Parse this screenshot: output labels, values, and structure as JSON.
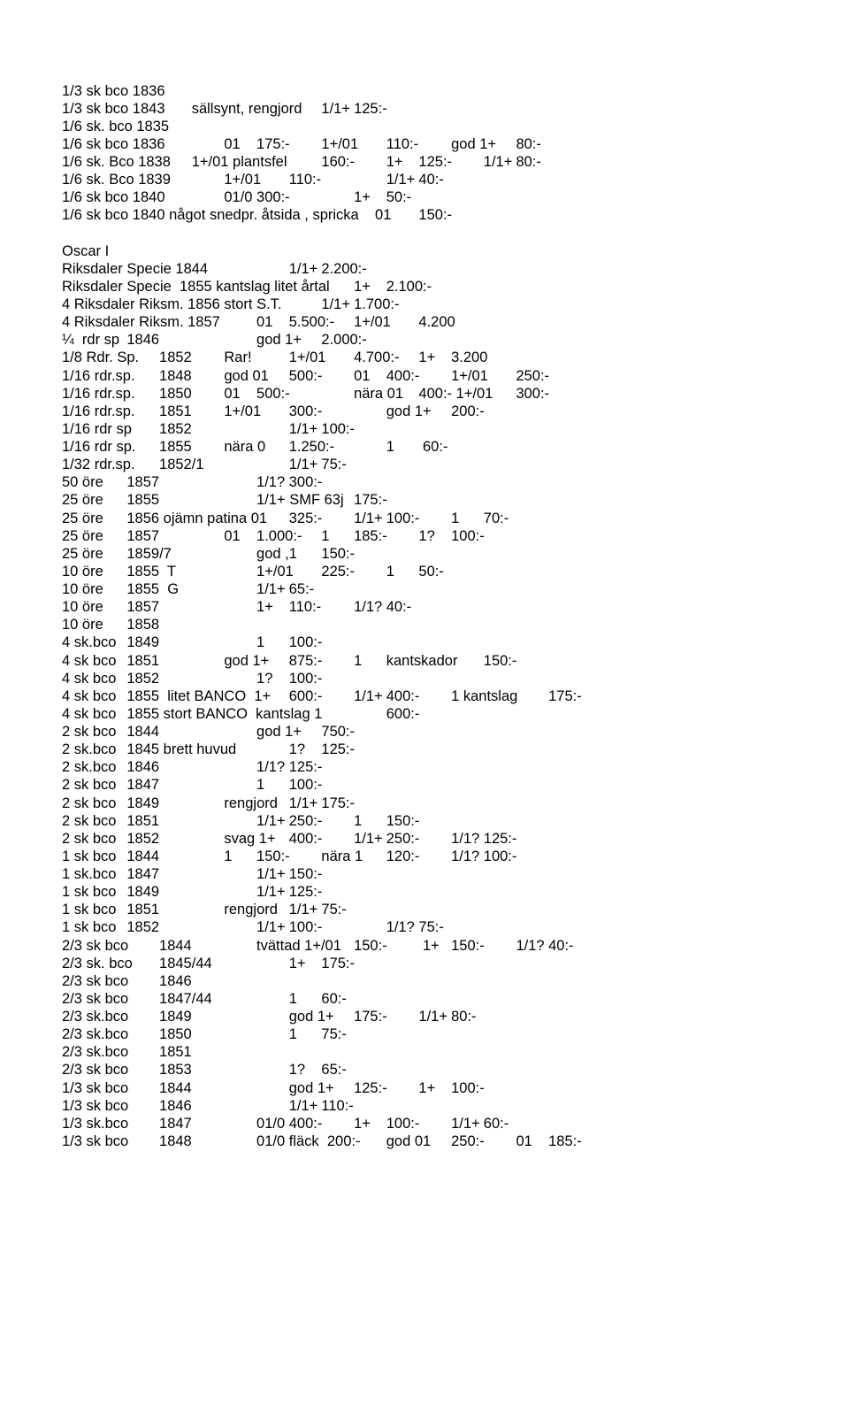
{
  "lines": [
    "1/3 sk bco 1836",
    "1/3 sk bco 1843\tsällsynt, rengjord\t1/1+\t125:-",
    "1/6 sk. bco 1835",
    "1/6 sk bco 1836\t\t01\t175:-\t1+/01\t110:-\tgod 1+\t80:-",
    "1/6 sk. Bco 1838\t1+/01 plantsfel\t160:-\t1+\t125:-\t1/1+\t80:-",
    "1/6 sk. Bco 1839\t\t1+/01\t110:-\t\t1/1+\t40:-",
    "1/6 sk bco 1840\t\t01/0\t300:-\t\t1+\t50:-",
    "1/6 sk bco 1840 något snedpr. åtsida , spricka    01\t150:-",
    "",
    "Oscar I",
    "Riksdaler Specie 1844\t\t\t1/1+\t2.200:-",
    "Riksdaler Specie  1855 kantslag litet årtal\t1+\t2.100:-",
    "4 Riksdaler Riksm. 1856 stort S.T.\t\t1/1+\t1.700:-",
    "4 Riksdaler Riksm. 1857\t\t01\t5.500:-\t1+/01\t4.200",
    "¼  rdr sp\t1846\t\t\tgod 1+\t2.000:-",
    "1/8 Rdr. Sp.\t1852\tRar!\t\t1+/01\t4.700:-\t1+\t3.200",
    "1/16 rdr.sp.\t1848\tgod 01\t500:-\t01\t400:-\t1+/01\t250:-",
    "1/16 rdr.sp.\t1850\t01\t500:-\t\tnära 01\t400:- 1+/01\t300:-",
    "1/16 rdr.sp.\t1851\t1+/01\t300:-\t\tgod 1+\t200:-",
    "1/16 rdr sp\t1852\t\t\t1/1+\t100:-",
    "1/16 rdr sp.\t1855\tnära 0\t1.250:-\t\t1\t 60:-",
    "1/32 rdr.sp.\t1852/1\t\t\t1/1+\t75:-",
    "50 öre\t1857\t\t\t1/1?\t300:-",
    "25 öre\t1855\t\t\t1/1+ SMF 63j\t175:-",
    "25 öre\t1856 ojämn patina 01\t325:-\t1/1+\t100:-\t1\t70:-",
    "25 öre\t1857\t\t01\t1.000:-\t1\t185:-\t1?\t100:-",
    "25 öre\t1859/7\t\t\tgod ,1\t150:-",
    "10 öre\t1855  T\t\t\t1+/01\t225:-\t1\t50:-",
    "10 öre\t1855  G\t\t\t1/1+\t65:-",
    "10 öre\t1857\t\t\t1+\t110:-\t1/1?\t40:-",
    "10 öre\t1858",
    "4 sk.bco\t1849\t\t\t1\t100:-",
    "4 sk bco\t1851\t\tgod 1+\t875:-\t1\tkantskador\t150:-",
    "4 sk bco\t1852\t\t\t1?\t100:-",
    "4 sk bco\t1855  litet BANCO  1+\t600:-\t1/1+\t400:-\t1 kantslag\t175:-",
    "4 sk bco\t1855 stort BANCO  kantslag 1\t\t600:-",
    "2 sk bco\t1844\t\t\tgod 1+\t750:-",
    "2 sk.bco\t1845 brett huvud\t\t1?\t125:-",
    "2 sk.bco\t1846\t\t\t1/1?\t125:-",
    "2 sk bco\t1847\t\t\t1\t100:-",
    "2 sk bco\t1849\t\trengjord\t1/1+\t175:-",
    "2 sk bco\t1851\t\t\t1/1+\t250:-\t1\t150:-",
    "2 sk bco\t1852\t\tsvag 1+\t400:-\t1/1+\t250:-\t1/1?\t125:-",
    "1 sk bco\t1844\t\t1\t150:-\tnära 1\t120:-\t1/1?\t100:-",
    "1 sk.bco\t1847\t\t\t1/1+\t150:-",
    "1 sk bco\t1849\t\t\t1/1+\t125:-",
    "1 sk bco\t1851\t\trengjord\t1/1+\t75:-",
    "1 sk bco\t1852\t\t\t1/1+\t100:-\t\t1/1?\t75:-",
    "2/3 sk bco\t1844\t\ttvättad 1+/01\t150:-\t 1+\t150:-\t1/1?\t40:-",
    "2/3 sk. bco\t1845/44\t\t\t1+\t175:-",
    "2/3 sk bco\t1846",
    "2/3 sk bco\t1847/44\t\t\t1\t60:-",
    "2/3 sk.bco\t1849\t\t\tgod 1+\t175:-\t1/1+\t80:-",
    "2/3 sk.bco\t1850\t\t\t1\t75:-",
    "2/3 sk.bco\t1851",
    "2/3 sk bco\t1853\t\t\t1?\t65:-",
    "1/3 sk bco\t1844\t\t\tgod 1+\t125:-\t1+\t100:-",
    "1/3 sk bco\t1846\t\t\t1/1+\t110:-",
    "1/3 sk.bco\t1847\t\t01/0\t400:-\t1+\t100:-\t1/1+\t60:-",
    "1/3 sk bco\t1848\t\t01/0 fläck  200:-\tgod 01\t250:-\t01\t185:-"
  ]
}
